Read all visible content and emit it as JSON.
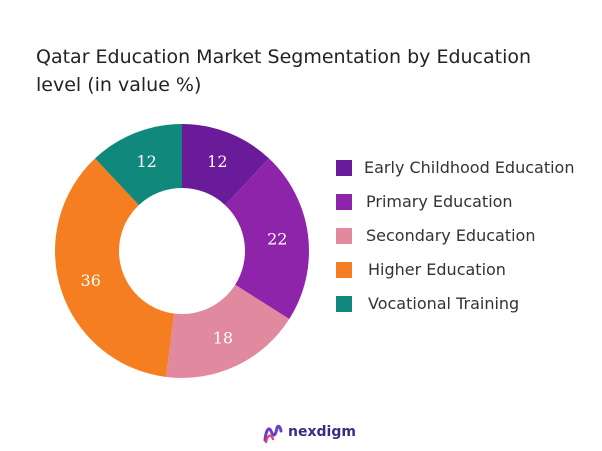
{
  "chart_data": {
    "type": "pie",
    "title": "Qatar Education Market Segmentation by Education level (in value %)",
    "categories": [
      "Early Childhood Education",
      "Primary Education",
      "Secondary Education",
      "Higher Education",
      "Vocational Training"
    ],
    "values": [
      12,
      22,
      18,
      36,
      12
    ],
    "colors": [
      "#6a1b9a",
      "#8e24aa",
      "#e0899f",
      "#f57f20",
      "#10897c"
    ],
    "donut": true,
    "legend": "right"
  },
  "brand": {
    "name": "nexdigm",
    "color": "#3a2b86"
  }
}
